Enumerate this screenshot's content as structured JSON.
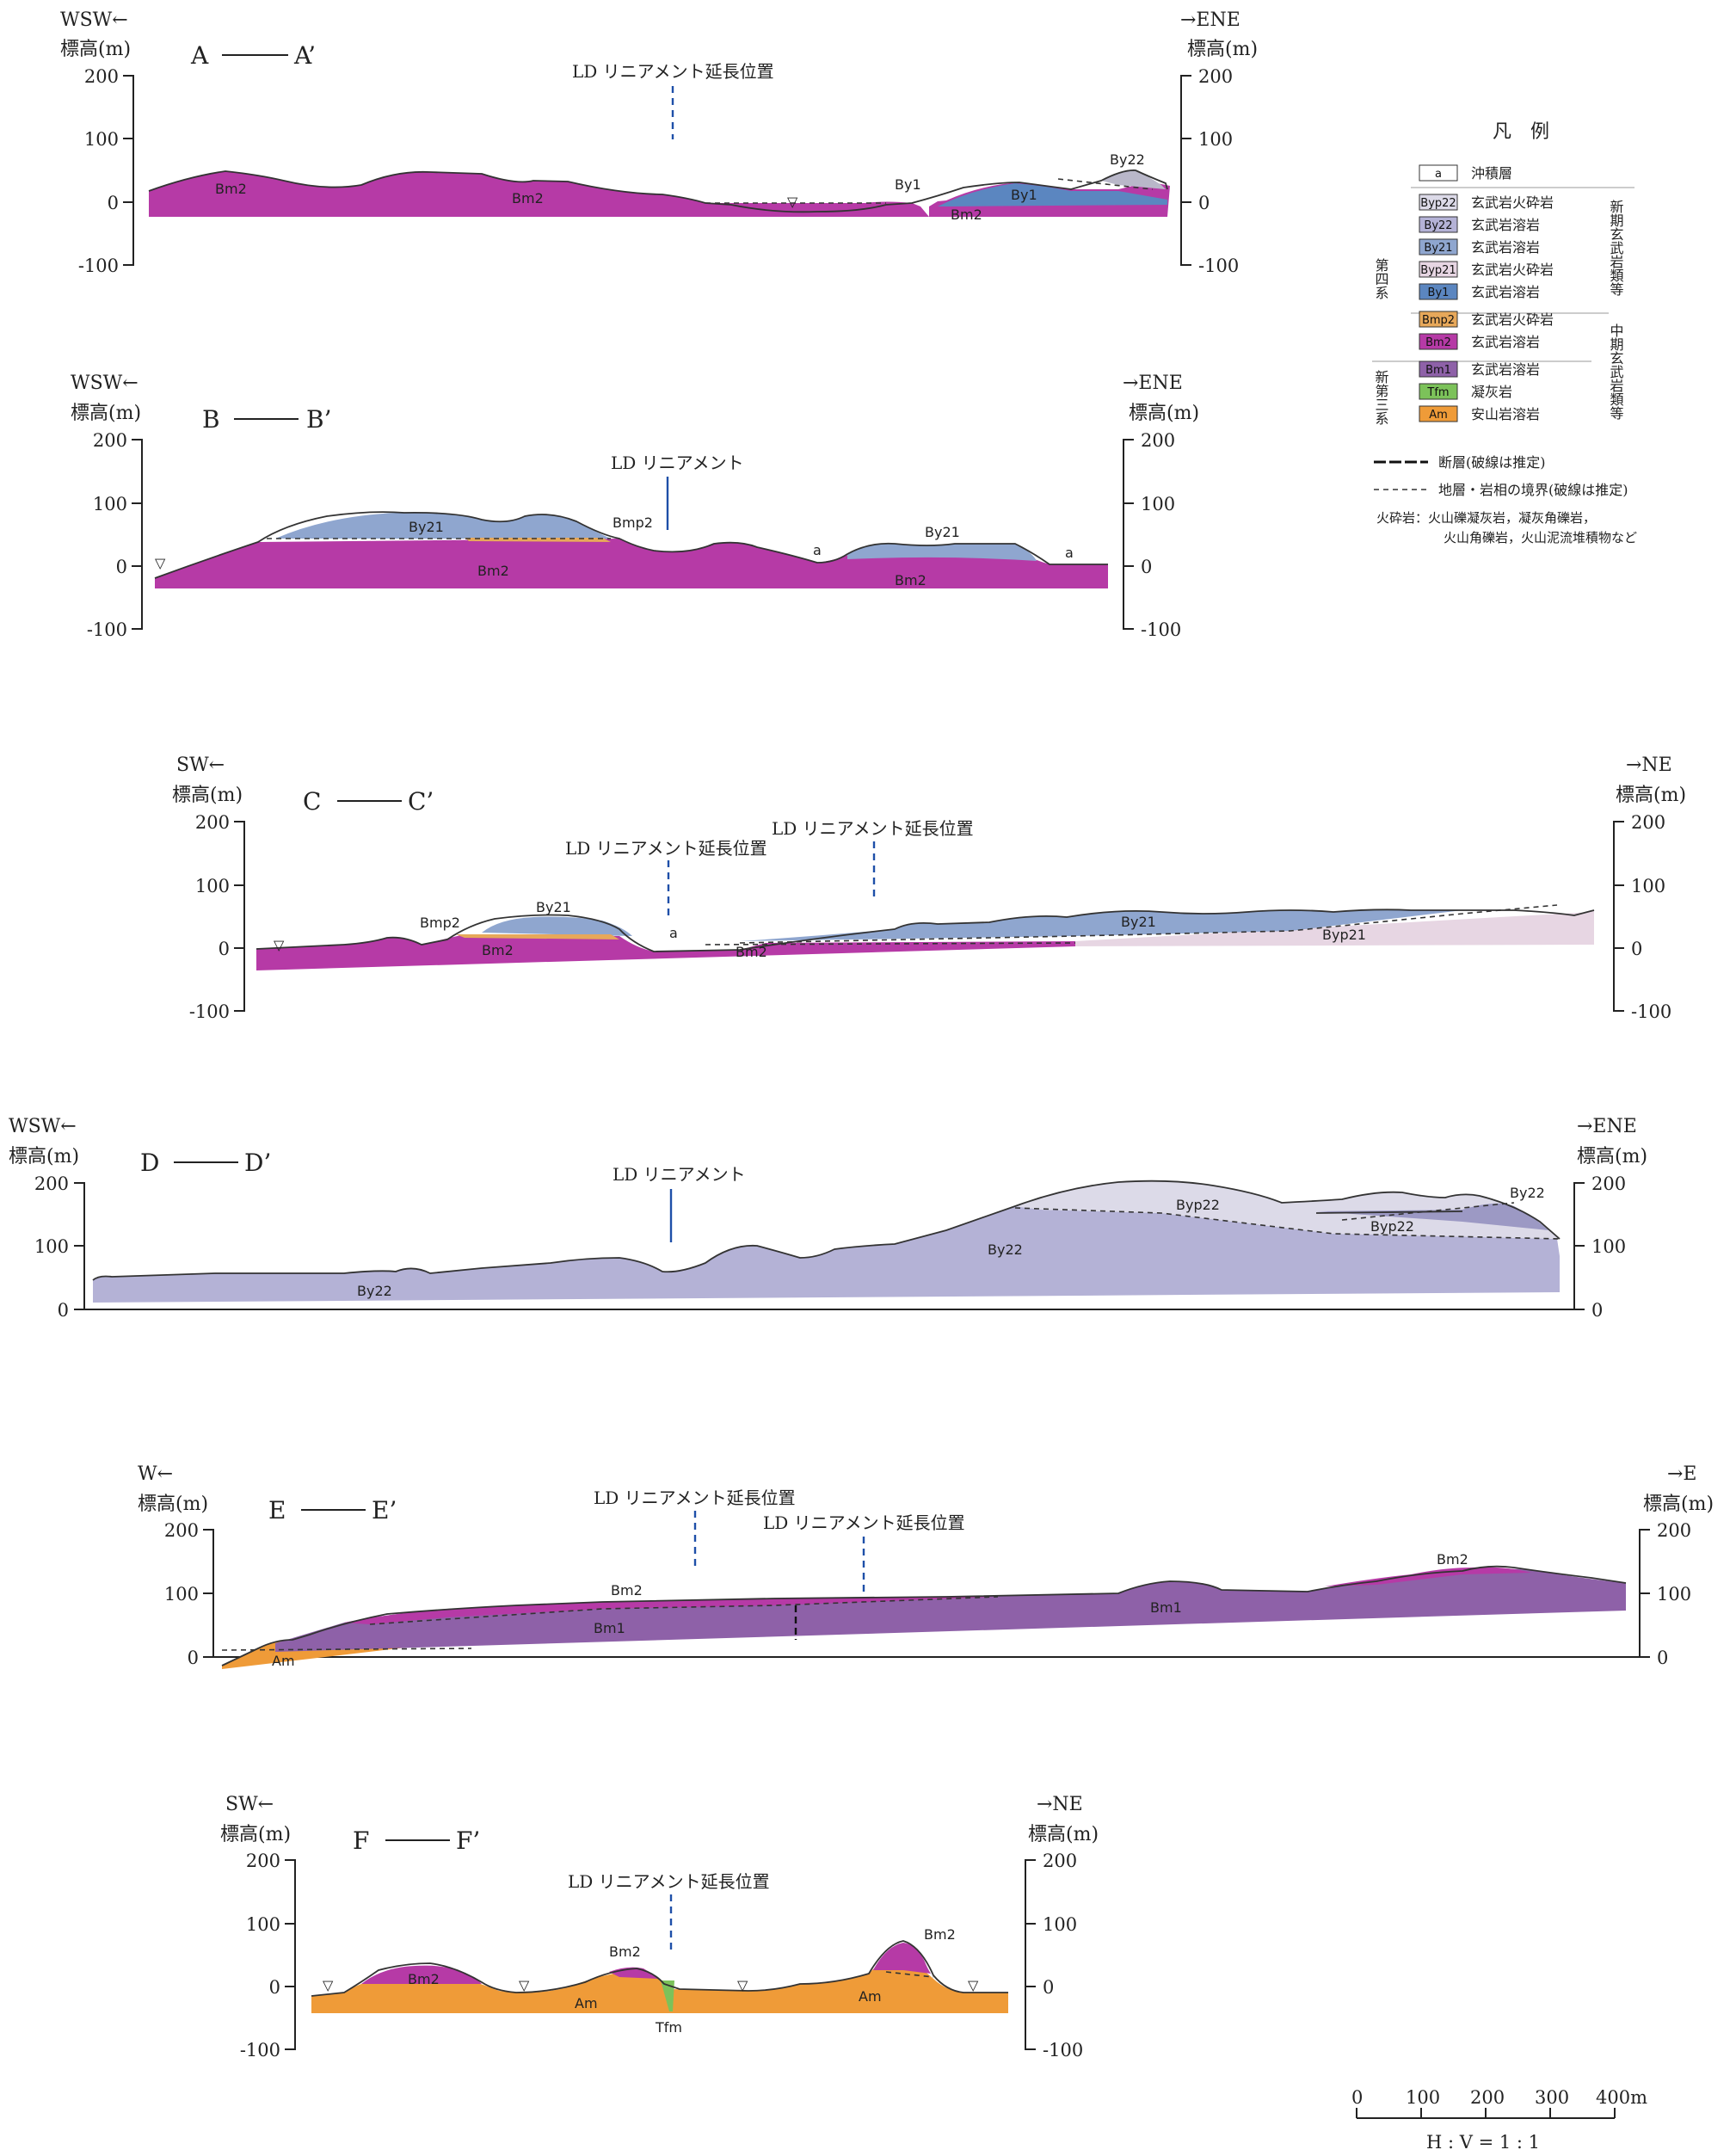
{
  "colors": {
    "a": "#ffffff",
    "Byp22": "#dcdae8",
    "By22": "#b4b2d6",
    "By21": "#8fa6cf",
    "Byp21": "#e7d6e3",
    "By1": "#5b86c0",
    "Bmp2": "#e7a85a",
    "Bm2": "#b63aa6",
    "Bm1": "#8e61a8",
    "Tfm": "#7cc25a",
    "Am": "#ef9b38",
    "lineament": "#1e4fa8"
  },
  "sections": [
    {
      "id": "A",
      "title_left": "A",
      "title_right": "A’",
      "dir_left": "WSW←",
      "dir_right": "→ENE",
      "unit": "標高(m)",
      "ticks": [
        "200",
        "100",
        "0",
        "-100"
      ],
      "lineament": "LD リニアメント延長位置",
      "units": [
        "Bm2",
        "Bm2",
        "By1",
        "By1",
        "By22",
        "Bm2"
      ]
    },
    {
      "id": "B",
      "title_left": "B",
      "title_right": "B’",
      "dir_left": "WSW←",
      "dir_right": "→ENE",
      "unit": "標高(m)",
      "ticks": [
        "200",
        "100",
        "0",
        "-100"
      ],
      "lineament": "LD リニアメント",
      "units": [
        "By21",
        "Bmp2",
        "Bm2",
        "a",
        "By21",
        "a",
        "Bm2"
      ]
    },
    {
      "id": "C",
      "title_left": "C",
      "title_right": "C’",
      "dir_left": "SW←",
      "dir_right": "→NE",
      "unit": "標高(m)",
      "ticks": [
        "200",
        "100",
        "0",
        "-100"
      ],
      "lineament": "LD リニアメント延長位置",
      "lineament2": "LD リニアメント延長位置",
      "units": [
        "Bmp2",
        "By21",
        "Bm2",
        "a",
        "Bm2",
        "By21",
        "Byp21"
      ]
    },
    {
      "id": "D",
      "title_left": "D",
      "title_right": "D’",
      "dir_left": "WSW←",
      "dir_right": "→ENE",
      "unit": "標高(m)",
      "ticks": [
        "200",
        "100",
        "0"
      ],
      "lineament": "LD リニアメント",
      "units": [
        "By22",
        "By22",
        "Byp22",
        "By22",
        "Byp22"
      ]
    },
    {
      "id": "E",
      "title_left": "E",
      "title_right": "E’",
      "dir_left": "W←",
      "dir_right": "→E",
      "unit": "標高(m)",
      "ticks": [
        "200",
        "100",
        "0"
      ],
      "lineament": "LD リニアメント延長位置",
      "lineament2": "LD リニアメント延長位置",
      "units": [
        "Bm2",
        "Bm1",
        "Am",
        "Bm1",
        "Bm2"
      ]
    },
    {
      "id": "F",
      "title_left": "F",
      "title_right": "F’",
      "dir_left": "SW←",
      "dir_right": "→NE",
      "unit": "標高(m)",
      "ticks": [
        "200",
        "100",
        "0",
        "-100"
      ],
      "lineament": "LD リニアメント延長位置",
      "units": [
        "Bm2",
        "Am",
        "Bm2",
        "Tfm",
        "Am",
        "Bm2"
      ]
    }
  ],
  "legend": {
    "title": "凡　例",
    "items": [
      {
        "code": "a",
        "label": "沖積層"
      },
      {
        "code": "Byp22",
        "label": "玄武岩火砕岩"
      },
      {
        "code": "By22",
        "label": "玄武岩溶岩"
      },
      {
        "code": "By21",
        "label": "玄武岩溶岩"
      },
      {
        "code": "Byp21",
        "label": "玄武岩火砕岩"
      },
      {
        "code": "By1",
        "label": "玄武岩溶岩"
      },
      {
        "code": "Bmp2",
        "label": "玄武岩火砕岩"
      },
      {
        "code": "Bm2",
        "label": "玄武岩溶岩"
      },
      {
        "code": "Bm1",
        "label": "玄武岩溶岩"
      },
      {
        "code": "Tfm",
        "label": "凝灰岩"
      },
      {
        "code": "Am",
        "label": "安山岩溶岩"
      }
    ],
    "group_quaternary": "第四系",
    "group_neogene": "新第三系",
    "group_new": "新期玄武岩類等",
    "group_mid": "中期玄武岩類等",
    "fault": "断層(破線は推定)",
    "boundary": "地層・岩相の境界(破線は推定)",
    "note1": "火砕岩：火山礫凝灰岩，凝灰角礫岩，",
    "note2": "火山角礫岩，火山泥流堆積物など"
  },
  "scale": {
    "labels": [
      "0",
      "100",
      "200",
      "300",
      "400m"
    ],
    "ratio": "H : V = 1 : 1"
  }
}
